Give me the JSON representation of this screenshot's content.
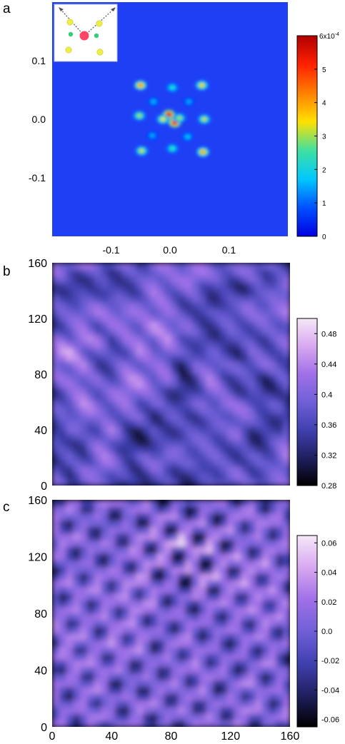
{
  "chart_data": [
    {
      "type": "heatmap",
      "panel_label": "a",
      "x_ticks": [
        "-0.1",
        "0.0",
        "0.1"
      ],
      "y_ticks": [
        "0.1",
        "0.0",
        "-0.1"
      ],
      "colorbar": {
        "ticks": [
          "0",
          "1",
          "2",
          "3",
          "4",
          "5"
        ],
        "top_label": "6x10",
        "top_label_exponent": "-4",
        "range": [
          0,
          6
        ],
        "colors": [
          "#0000e0",
          "#0050ff",
          "#00c8ff",
          "#40e0a0",
          "#ffe000",
          "#ff8000",
          "#ff2000",
          "#b00000"
        ]
      },
      "background_color": "#1f3ff5",
      "peaks": [
        {
          "x": -0.002,
          "y": 0.008,
          "v": 5.8
        },
        {
          "x": 0.008,
          "y": -0.006,
          "v": 5.6
        },
        {
          "x": -0.012,
          "y": 0.0,
          "v": 3.4
        },
        {
          "x": 0.016,
          "y": 0.002,
          "v": 3.0
        },
        {
          "x": -0.05,
          "y": 0.058,
          "v": 4.2
        },
        {
          "x": 0.054,
          "y": 0.058,
          "v": 3.6
        },
        {
          "x": -0.048,
          "y": -0.054,
          "v": 3.2
        },
        {
          "x": 0.056,
          "y": -0.056,
          "v": 4.0
        },
        {
          "x": -0.052,
          "y": 0.006,
          "v": 3.0
        },
        {
          "x": 0.058,
          "y": 0.0,
          "v": 3.2
        },
        {
          "x": 0.004,
          "y": 0.054,
          "v": 2.2
        },
        {
          "x": 0.004,
          "y": -0.05,
          "v": 2.4
        },
        {
          "x": -0.028,
          "y": 0.03,
          "v": 1.6
        },
        {
          "x": 0.03,
          "y": -0.03,
          "v": 1.7
        },
        {
          "x": -0.03,
          "y": -0.028,
          "v": 1.5
        },
        {
          "x": 0.032,
          "y": 0.03,
          "v": 1.5
        }
      ],
      "inset": {
        "icons": [
          "arrow-icon",
          "arrow-icon",
          "central-atom-icon",
          "neighbor-atom-icon",
          "second-neighbor-atom-icon"
        ],
        "colors": {
          "center": "#ff4466",
          "near": "#33cc77",
          "far": "#eeee44",
          "arrow": "#555555"
        }
      }
    },
    {
      "type": "heatmap",
      "panel_label": "b",
      "x_ticks": [],
      "y_ticks": [
        "160",
        "120",
        "80",
        "40",
        "0"
      ],
      "xlim": [
        0,
        160
      ],
      "ylim": [
        0,
        160
      ],
      "colorbar": {
        "ticks": [
          "0.48",
          "0.44",
          "0.4",
          "0.36",
          "0.32",
          "0.28"
        ],
        "range": [
          0.28,
          0.5
        ],
        "colors": [
          "#000000",
          "#202060",
          "#4040b0",
          "#7060d8",
          "#a070e8",
          "#d8a8f0",
          "#f6e8f8"
        ]
      },
      "mean": 0.39
    },
    {
      "type": "heatmap",
      "panel_label": "c",
      "x_ticks": [
        "0",
        "40",
        "80",
        "120",
        "160"
      ],
      "y_ticks": [
        "160",
        "120",
        "80",
        "40",
        "0"
      ],
      "xlim": [
        0,
        160
      ],
      "ylim": [
        0,
        160
      ],
      "colorbar": {
        "ticks": [
          "0.06",
          "0.04",
          "0.02",
          "0.0",
          "-0.02",
          "-0.04",
          "-0.06"
        ],
        "range": [
          -0.065,
          0.065
        ],
        "colors": [
          "#000000",
          "#202060",
          "#4040b0",
          "#7060d8",
          "#a070e8",
          "#d8a8f0",
          "#f6e8f8"
        ]
      },
      "mean": 0.0
    }
  ]
}
